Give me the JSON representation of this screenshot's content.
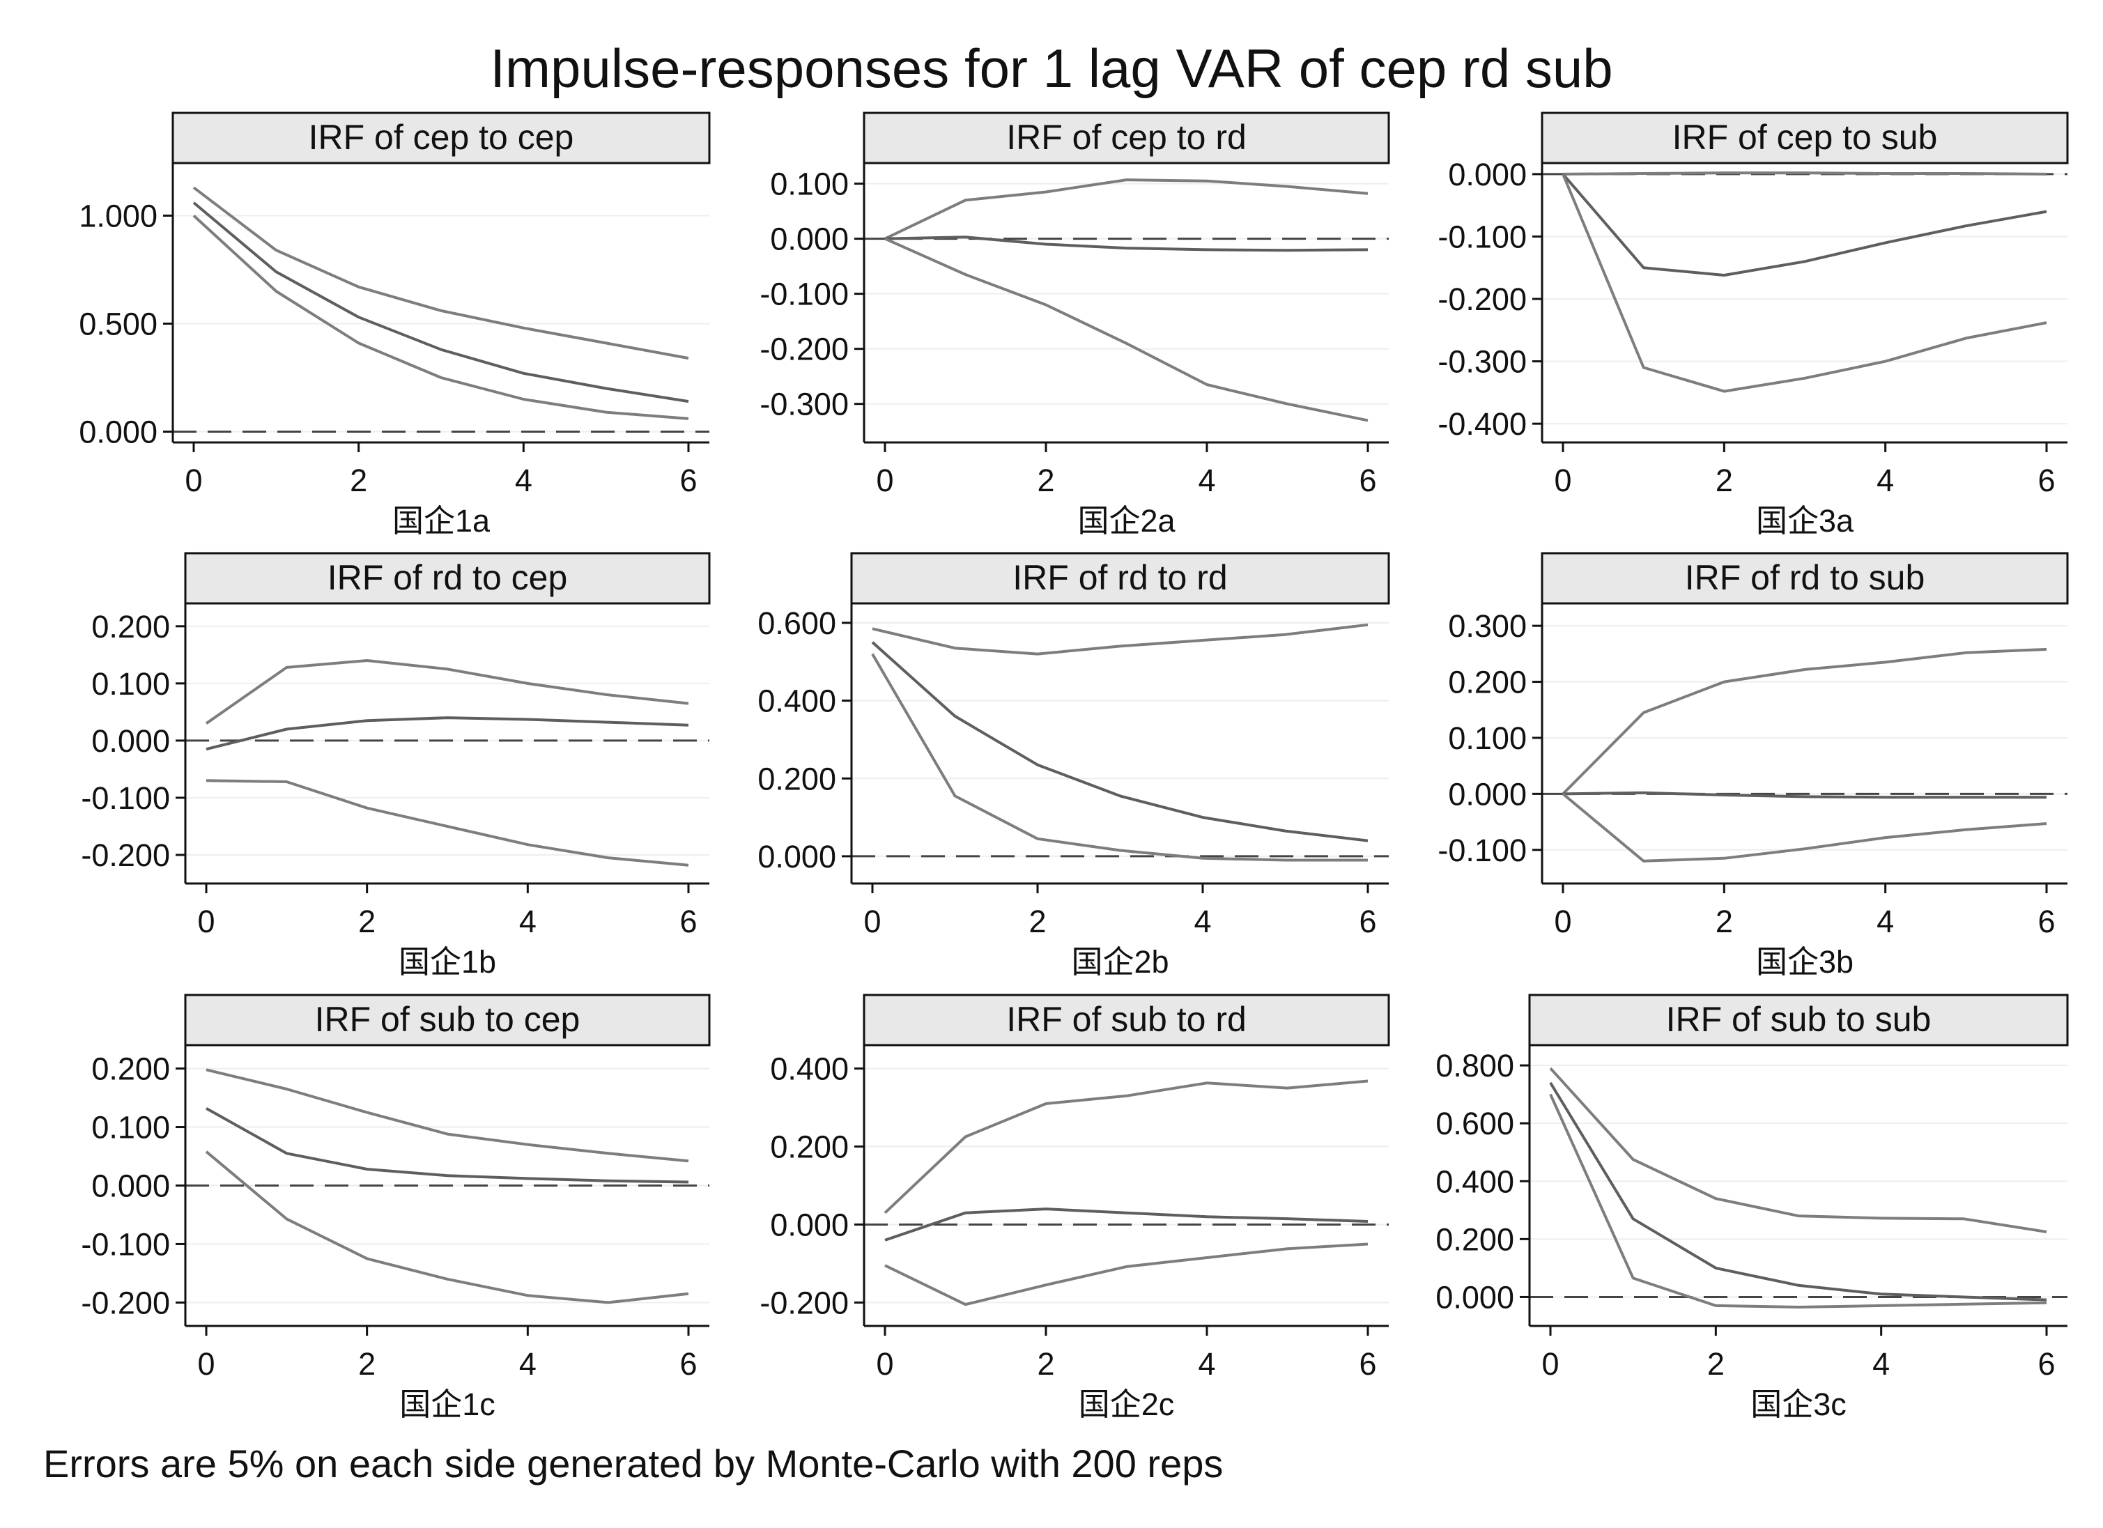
{
  "chart_data": {
    "type": "line",
    "title": "Impulse-responses for 1 lag VAR of cep rd sub",
    "note": "Errors are 5% on each side generated by Monte-Carlo with 200 reps",
    "x": [
      0,
      1,
      2,
      3,
      4,
      5,
      6
    ],
    "xticks": [
      0,
      2,
      4,
      6
    ],
    "grid": true,
    "colors": {
      "ci": "#7d7d7d",
      "irf": "#5e5e5e",
      "zero_line": "#444444",
      "strip": "#e8e8e8"
    },
    "panels": [
      {
        "title": "IRF of cep to cep",
        "xlabel": "国企1a",
        "ylim": [
          -0.05,
          1.25
        ],
        "yticks": [
          0.0,
          0.5,
          1.0
        ],
        "ytick_labels": [
          "0.000",
          "0.500",
          "1.000"
        ],
        "series": [
          {
            "role": "upper",
            "values": [
              1.13,
              0.84,
              0.67,
              0.56,
              0.48,
              0.41,
              0.34
            ]
          },
          {
            "role": "irf",
            "values": [
              1.06,
              0.74,
              0.53,
              0.38,
              0.27,
              0.2,
              0.14
            ]
          },
          {
            "role": "lower",
            "values": [
              1.0,
              0.65,
              0.41,
              0.25,
              0.15,
              0.09,
              0.06
            ]
          }
        ]
      },
      {
        "title": "IRF of cep to rd",
        "xlabel": "国企2a",
        "ylim": [
          -0.37,
          0.14
        ],
        "yticks": [
          -0.3,
          -0.2,
          -0.1,
          0.0,
          0.1
        ],
        "ytick_labels": [
          "-0.300",
          "-0.200",
          "-0.100",
          "0.000",
          "0.100"
        ],
        "series": [
          {
            "role": "upper",
            "values": [
              0.0,
              0.07,
              0.085,
              0.107,
              0.105,
              0.095,
              0.082
            ]
          },
          {
            "role": "irf",
            "values": [
              0.0,
              0.003,
              -0.01,
              -0.017,
              -0.02,
              -0.021,
              -0.02
            ]
          },
          {
            "role": "lower",
            "values": [
              0.0,
              -0.065,
              -0.12,
              -0.19,
              -0.265,
              -0.3,
              -0.33
            ]
          }
        ]
      },
      {
        "title": "IRF of cep to sub",
        "xlabel": "国企3a",
        "ylim": [
          -0.43,
          0.02
        ],
        "yticks": [
          -0.4,
          -0.3,
          -0.2,
          -0.1,
          0.0
        ],
        "ytick_labels": [
          "-0.400",
          "-0.300",
          "-0.200",
          "-0.100",
          "0.000"
        ],
        "series": [
          {
            "role": "upper",
            "values": [
              0.0,
              0.001,
              0.002,
              0.002,
              0.001,
              0.001,
              0.0
            ]
          },
          {
            "role": "irf",
            "values": [
              0.0,
              -0.15,
              -0.162,
              -0.14,
              -0.11,
              -0.083,
              -0.06
            ]
          },
          {
            "role": "lower",
            "values": [
              0.0,
              -0.31,
              -0.348,
              -0.327,
              -0.3,
              -0.263,
              -0.238
            ]
          }
        ]
      },
      {
        "title": "IRF of rd to cep",
        "xlabel": "国企1b",
        "ylim": [
          -0.25,
          0.24
        ],
        "yticks": [
          -0.2,
          -0.1,
          0.0,
          0.1,
          0.2
        ],
        "ytick_labels": [
          "-0.200",
          "-0.100",
          "0.000",
          "0.100",
          "0.200"
        ],
        "series": [
          {
            "role": "upper",
            "values": [
              0.03,
              0.128,
              0.14,
              0.125,
              0.1,
              0.08,
              0.065
            ]
          },
          {
            "role": "irf",
            "values": [
              -0.015,
              0.02,
              0.035,
              0.04,
              0.037,
              0.032,
              0.027
            ]
          },
          {
            "role": "lower",
            "values": [
              -0.07,
              -0.072,
              -0.118,
              -0.15,
              -0.182,
              -0.205,
              -0.218
            ]
          }
        ]
      },
      {
        "title": "IRF of rd to rd",
        "xlabel": "国企2b",
        "ylim": [
          -0.07,
          0.65
        ],
        "yticks": [
          0.0,
          0.2,
          0.4,
          0.6
        ],
        "ytick_labels": [
          "0.000",
          "0.200",
          "0.400",
          "0.600"
        ],
        "series": [
          {
            "role": "upper",
            "values": [
              0.585,
              0.535,
              0.52,
              0.54,
              0.555,
              0.57,
              0.595
            ]
          },
          {
            "role": "irf",
            "values": [
              0.55,
              0.36,
              0.235,
              0.155,
              0.1,
              0.065,
              0.04
            ]
          },
          {
            "role": "lower",
            "values": [
              0.52,
              0.155,
              0.045,
              0.015,
              -0.005,
              -0.01,
              -0.01
            ]
          }
        ]
      },
      {
        "title": "IRF of rd to sub",
        "xlabel": "国企3b",
        "ylim": [
          -0.16,
          0.34
        ],
        "yticks": [
          -0.1,
          0.0,
          0.1,
          0.2,
          0.3
        ],
        "ytick_labels": [
          "-0.100",
          "0.000",
          "0.100",
          "0.200",
          "0.300"
        ],
        "series": [
          {
            "role": "upper",
            "values": [
              0.0,
              0.145,
              0.2,
              0.222,
              0.235,
              0.252,
              0.258
            ]
          },
          {
            "role": "irf",
            "values": [
              0.0,
              0.002,
              -0.002,
              -0.005,
              -0.006,
              -0.006,
              -0.006
            ]
          },
          {
            "role": "lower",
            "values": [
              0.0,
              -0.12,
              -0.115,
              -0.098,
              -0.078,
              -0.064,
              -0.053
            ]
          }
        ]
      },
      {
        "title": "IRF of sub to cep",
        "xlabel": "国企1c",
        "ylim": [
          -0.24,
          0.24
        ],
        "yticks": [
          -0.2,
          -0.1,
          0.0,
          0.1,
          0.2
        ],
        "ytick_labels": [
          "-0.200",
          "-0.100",
          "0.000",
          "0.100",
          "0.200"
        ],
        "series": [
          {
            "role": "upper",
            "values": [
              0.198,
              0.165,
              0.125,
              0.088,
              0.07,
              0.055,
              0.042
            ]
          },
          {
            "role": "irf",
            "values": [
              0.132,
              0.055,
              0.028,
              0.017,
              0.012,
              0.008,
              0.006
            ]
          },
          {
            "role": "lower",
            "values": [
              0.058,
              -0.057,
              -0.125,
              -0.16,
              -0.188,
              -0.2,
              -0.185
            ]
          }
        ]
      },
      {
        "title": "IRF of sub to rd",
        "xlabel": "国企2c",
        "ylim": [
          -0.26,
          0.46
        ],
        "yticks": [
          -0.2,
          0.0,
          0.2,
          0.4
        ],
        "ytick_labels": [
          "-0.200",
          "0.000",
          "0.200",
          "0.400"
        ],
        "series": [
          {
            "role": "upper",
            "values": [
              0.03,
              0.225,
              0.31,
              0.33,
              0.363,
              0.35,
              0.368
            ]
          },
          {
            "role": "irf",
            "values": [
              -0.04,
              0.03,
              0.04,
              0.03,
              0.02,
              0.015,
              0.008
            ]
          },
          {
            "role": "lower",
            "values": [
              -0.105,
              -0.205,
              -0.155,
              -0.108,
              -0.085,
              -0.062,
              -0.05
            ]
          }
        ]
      },
      {
        "title": "IRF of sub to sub",
        "xlabel": "国企3c",
        "ylim": [
          -0.1,
          0.87
        ],
        "yticks": [
          0.0,
          0.2,
          0.4,
          0.6,
          0.8
        ],
        "ytick_labels": [
          "0.000",
          "0.200",
          "0.400",
          "0.600",
          "0.800"
        ],
        "series": [
          {
            "role": "upper",
            "values": [
              0.79,
              0.475,
              0.34,
              0.28,
              0.272,
              0.27,
              0.225
            ]
          },
          {
            "role": "irf",
            "values": [
              0.74,
              0.27,
              0.1,
              0.04,
              0.01,
              0.0,
              -0.01
            ]
          },
          {
            "role": "lower",
            "values": [
              0.7,
              0.065,
              -0.03,
              -0.035,
              -0.03,
              -0.025,
              -0.02
            ]
          }
        ]
      }
    ]
  }
}
